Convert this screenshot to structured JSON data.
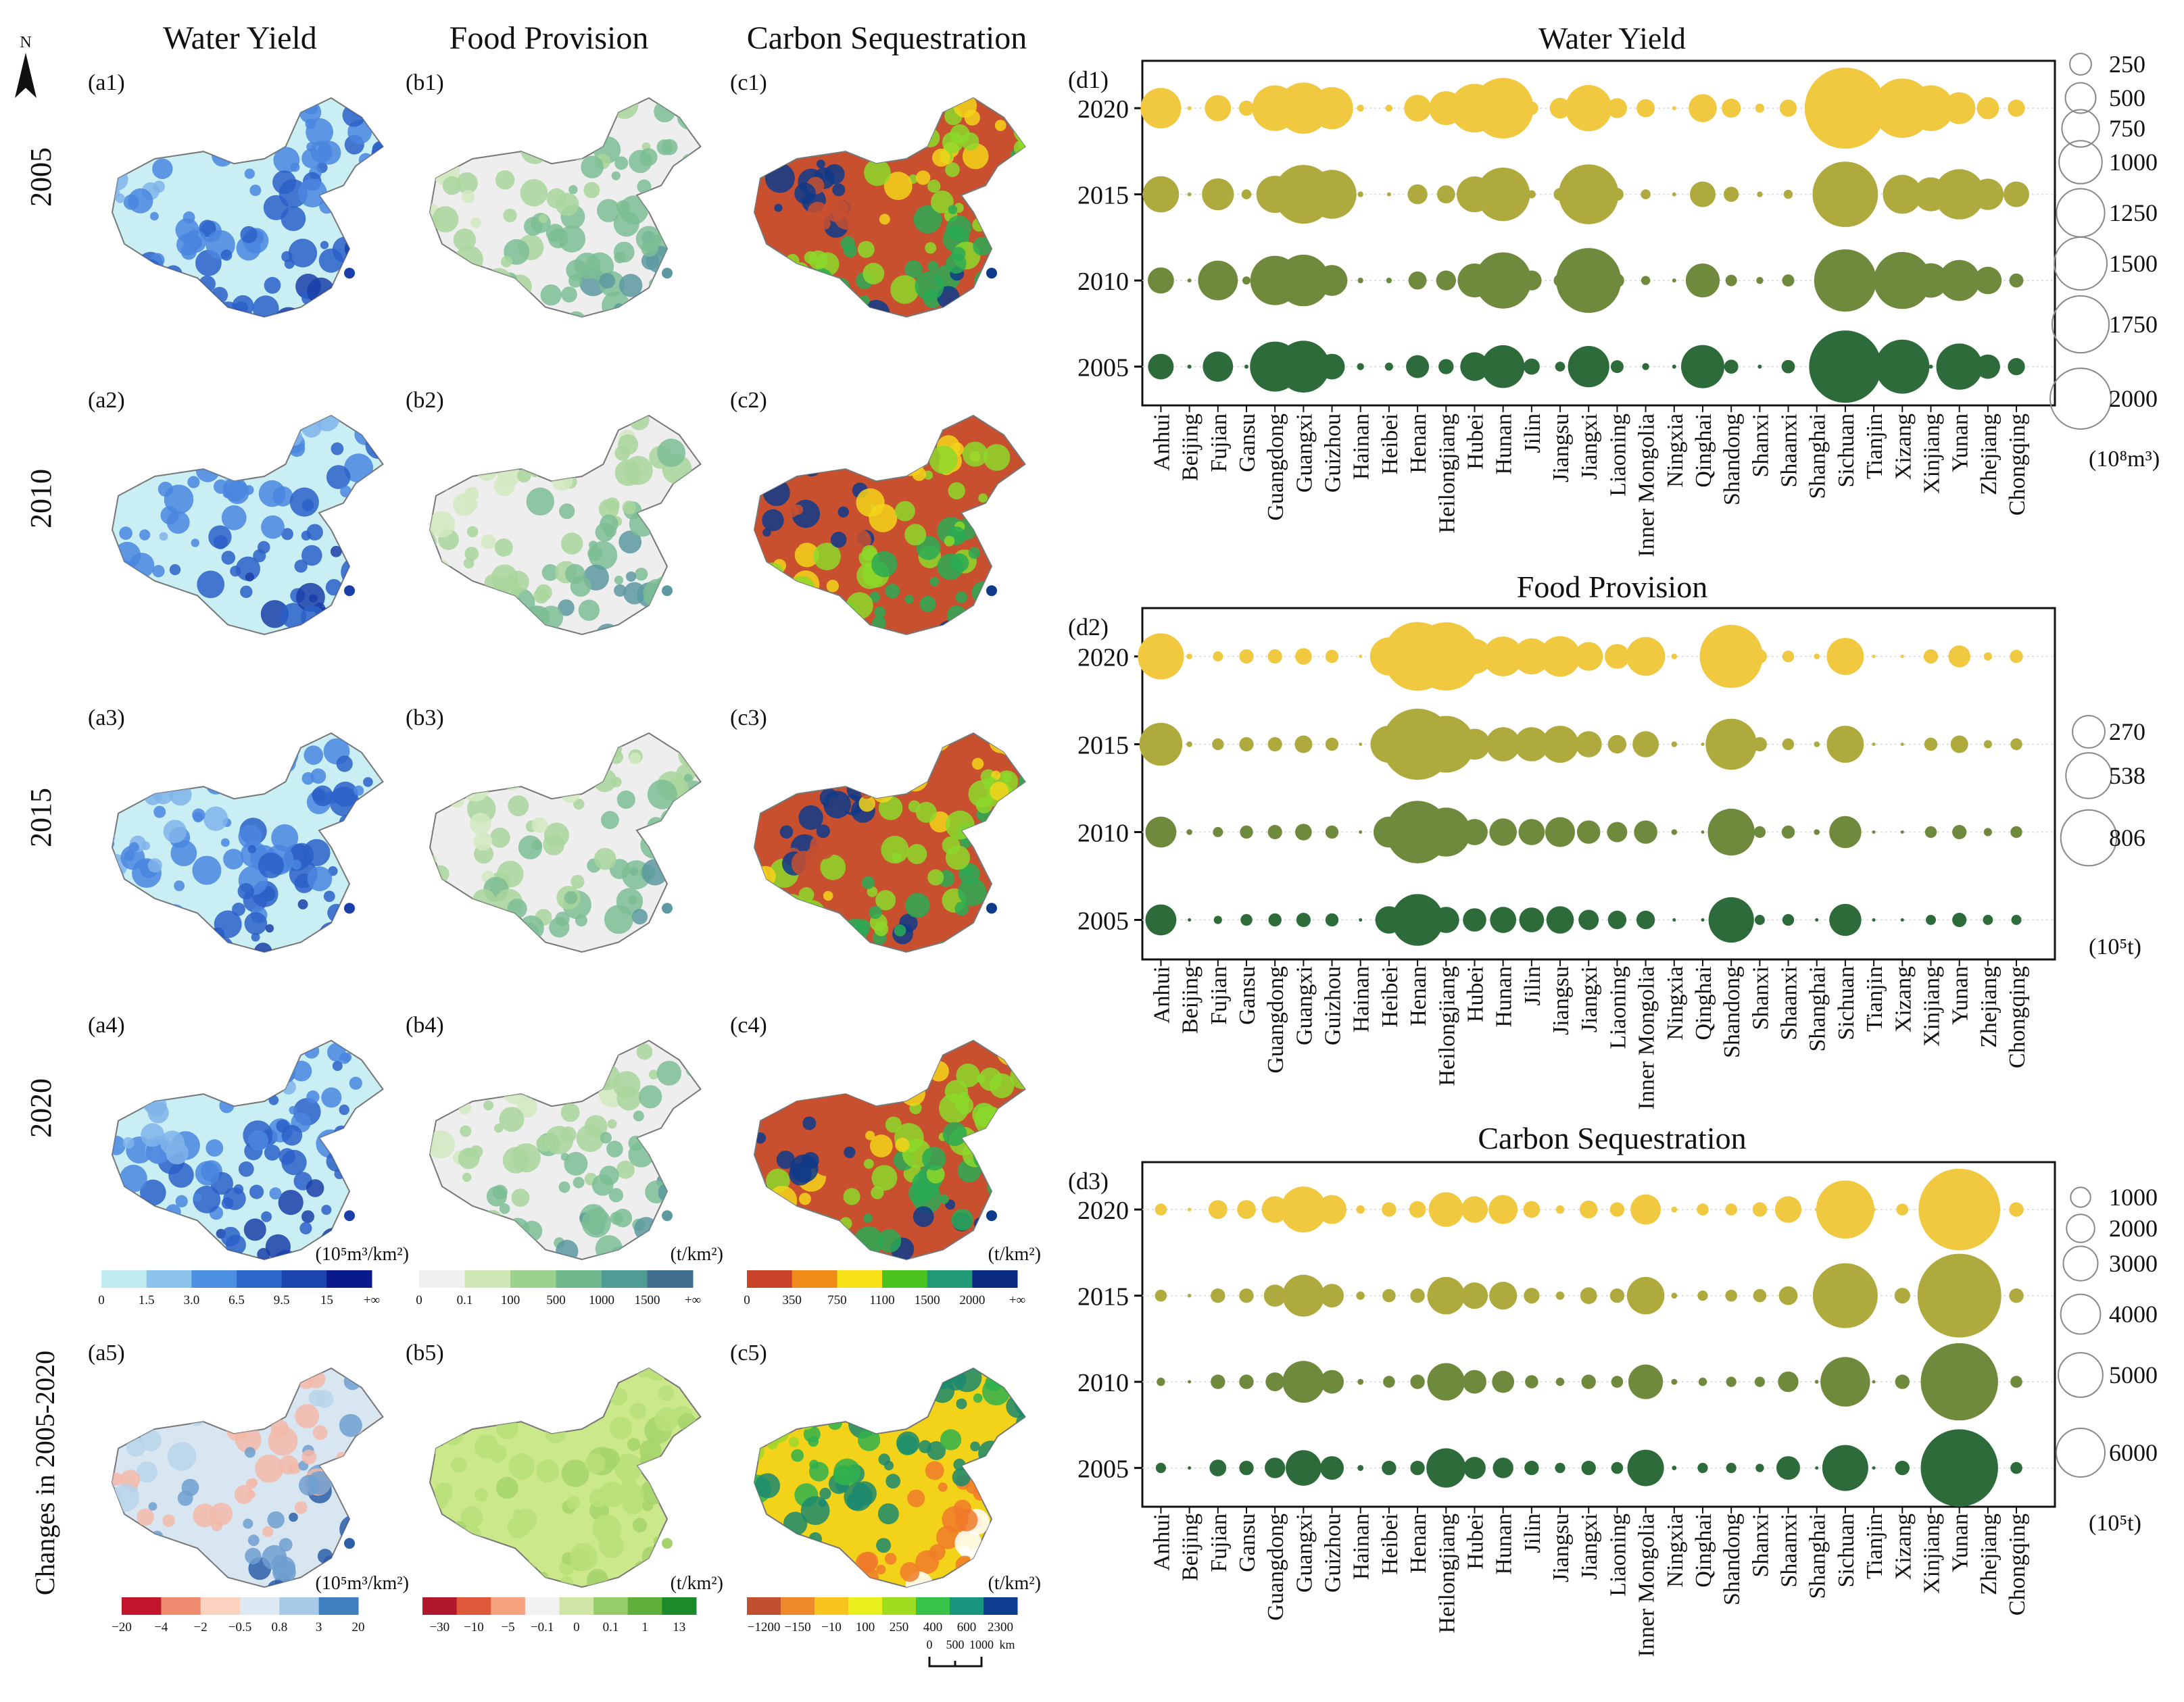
{
  "figure": {
    "col_titles": [
      "Water Yield",
      "Food Provision",
      "Carbon Sequestration"
    ],
    "row_labels": [
      "2005",
      "2010",
      "2015",
      "2020",
      "Changes in 2005-2020"
    ],
    "north_label": "N",
    "panel_labels": [
      [
        "(a1)",
        "(b1)",
        "(c1)"
      ],
      [
        "(a2)",
        "(b2)",
        "(c2)"
      ],
      [
        "(a3)",
        "(b3)",
        "(c3)"
      ],
      [
        "(a4)",
        "(b4)",
        "(c4)"
      ],
      [
        "(a5)",
        "(b5)",
        "(c5)"
      ]
    ],
    "legends": [
      {
        "unit": "(10⁵m³/km²)",
        "ticks": [
          "0",
          "1.5",
          "3.0",
          "6.5",
          "9.5",
          "15",
          "+∞"
        ],
        "colors": [
          "#bfeaf0",
          "#8cc3ec",
          "#4b8fe0",
          "#2c68c9",
          "#1c45b0",
          "#0a1a8c"
        ]
      },
      {
        "unit": "(t/km²)",
        "ticks": [
          "0",
          "0.1",
          "100",
          "500",
          "1000",
          "1500",
          "+∞"
        ],
        "colors": [
          "#f0f0f0",
          "#cfe8b5",
          "#9bd28f",
          "#6fb88e",
          "#4f9c95",
          "#3f6f8c"
        ]
      },
      {
        "unit": "(t/km²)",
        "ticks": [
          "0",
          "350",
          "750",
          "1100",
          "1500",
          "2000",
          "+∞"
        ],
        "colors": [
          "#c8432a",
          "#f08a18",
          "#f7e21a",
          "#4cc41f",
          "#1f9a75",
          "#0a2a80"
        ]
      },
      {
        "unit": "(10⁵m³/km²)",
        "ticks": [
          "−20",
          "−4",
          "−2",
          "−0.5",
          "0.8",
          "3",
          "20"
        ],
        "colors": [
          "#c0152b",
          "#ee8a6e",
          "#fbd1c0",
          "#dde9f3",
          "#a7cbe7",
          "#3f7fbf"
        ]
      },
      {
        "unit": "(t/km²)",
        "ticks": [
          "−30",
          "−10",
          "−5",
          "−0.1",
          "0",
          "0.1",
          "1",
          "13"
        ],
        "colors": [
          "#b2182b",
          "#e0583a",
          "#f7a27e",
          "#f2f2f2",
          "#cfe6a6",
          "#97cc6b",
          "#5fae3c",
          "#1a8a2a"
        ]
      },
      {
        "unit": "(t/km²)",
        "ticks": [
          "−1200",
          "−150",
          "−10",
          "100",
          "250",
          "400",
          "600",
          "2300"
        ],
        "colors": [
          "#c0502f",
          "#ee8a2a",
          "#f7c51e",
          "#eaf01e",
          "#9ddc1f",
          "#39c249",
          "#17957e",
          "#0f3d8f"
        ]
      }
    ],
    "scale_bar": {
      "ticks": [
        "0",
        "500",
        "1000"
      ],
      "unit": "km"
    }
  },
  "chart_data": [
    {
      "type": "bubble",
      "panel": "(d1)",
      "title": "Water Yield",
      "unit": "(10⁸m³)",
      "size_legend": [
        250,
        500,
        750,
        1000,
        1250,
        1500,
        1750,
        2000
      ],
      "categories": [
        "Anhui",
        "Beijing",
        "Fujian",
        "Gansu",
        "Guangdong",
        "Guangxi",
        "Guizhou",
        "Hainan",
        "Heibei",
        "Henan",
        "Heilongjiang",
        "Hubei",
        "Hunan",
        "Jilin",
        "Jiangsu",
        "Jiangxi",
        "Liaoning",
        "Inner Mongolia",
        "Ningxia",
        "Qinghai",
        "Shandong",
        "Shanxi",
        "Shaanxi",
        "Shanghai",
        "Sichuan",
        "Tianjin",
        "Xizang",
        "Xinjiang",
        "Yunan",
        "Zhejiang",
        "Chongqing"
      ],
      "series": [
        {
          "name": "2020",
          "values": [
            500,
            5,
            210,
            70,
            630,
            800,
            540,
            15,
            15,
            220,
            350,
            720,
            1120,
            55,
            130,
            650,
            120,
            100,
            5,
            240,
            110,
            25,
            90,
            5,
            2000,
            5,
            1070,
            640,
            310,
            150,
            90
          ]
        },
        {
          "name": "2015",
          "values": [
            400,
            5,
            310,
            30,
            420,
            1050,
            730,
            10,
            5,
            120,
            100,
            390,
            870,
            20,
            50,
            1090,
            50,
            30,
            5,
            200,
            70,
            10,
            25,
            5,
            1300,
            5,
            460,
            350,
            770,
            300,
            200
          ]
        },
        {
          "name": "2010",
          "values": [
            210,
            5,
            480,
            20,
            740,
            810,
            290,
            10,
            10,
            100,
            120,
            350,
            960,
            120,
            50,
            1280,
            60,
            25,
            5,
            350,
            40,
            15,
            45,
            5,
            1180,
            5,
            990,
            360,
            510,
            230,
            60
          ]
        },
        {
          "name": "2005",
          "values": [
            200,
            5,
            280,
            5,
            760,
            820,
            200,
            15,
            20,
            160,
            70,
            250,
            560,
            80,
            30,
            520,
            50,
            15,
            5,
            570,
            60,
            5,
            55,
            5,
            1590,
            5,
            890,
            5,
            650,
            180,
            90
          ]
        }
      ],
      "x_labels": [
        "Anhui",
        "Beijing",
        "Fujian",
        "Gansu",
        "Guangdong",
        "Guangxi",
        "Guizhou",
        "Hainan",
        "Heibei",
        "Henan",
        "Heilongjiang",
        "Hubei",
        "Hunan",
        "Jilin",
        "Jiangsu",
        "Jiangxi",
        "Liaoning",
        "Inner Mongolia",
        "Ningxia",
        "Qinghai",
        "Shandong",
        "Shanxi",
        "Shaanxi",
        "Shanghai",
        "Sichuan",
        "Tianjin",
        "Xizang",
        "Xinjiang",
        "Yunan",
        "Zhejiang",
        "Chongqing"
      ]
    },
    {
      "type": "bubble",
      "panel": "(d2)",
      "title": "Food Provision",
      "unit": "(10⁵t)",
      "size_legend": [
        270,
        538,
        806
      ],
      "categories": [
        "Anhui",
        "Beijing",
        "Fujian",
        "Gansu",
        "Guangdong",
        "Guangxi",
        "Guizhou",
        "Hainan",
        "Heibei",
        "Henan",
        "Heilongjiang",
        "Hubei",
        "Hunan",
        "Jilin",
        "Jiangsu",
        "Jiangxi",
        "Liaoning",
        "Inner Mongolia",
        "Ningxia",
        "Qinghai",
        "Shandong",
        "Shanxi",
        "Shaanxi",
        "Shanghai",
        "Sichuan",
        "Tianjin",
        "Xizang",
        "Xinjiang",
        "Yunan",
        "Zhejiang",
        "Chongqing"
      ],
      "series": [
        {
          "name": "2020",
          "values": [
            310,
            5,
            15,
            30,
            30,
            40,
            25,
            0,
            210,
            690,
            680,
            180,
            230,
            190,
            240,
            120,
            90,
            220,
            5,
            0,
            580,
            30,
            20,
            5,
            200,
            0,
            0,
            30,
            70,
            10,
            25
          ]
        },
        {
          "name": "2015",
          "values": [
            270,
            5,
            20,
            30,
            30,
            45,
            25,
            0,
            200,
            740,
            470,
            140,
            170,
            170,
            200,
            100,
            50,
            100,
            5,
            0,
            380,
            30,
            20,
            5,
            200,
            0,
            0,
            25,
            45,
            10,
            20
          ]
        },
        {
          "name": "2010",
          "values": [
            140,
            5,
            15,
            25,
            30,
            40,
            25,
            0,
            140,
            570,
            350,
            100,
            110,
            100,
            130,
            80,
            60,
            80,
            5,
            0,
            320,
            20,
            25,
            5,
            150,
            0,
            0,
            20,
            30,
            10,
            20
          ]
        },
        {
          "name": "2005",
          "values": [
            140,
            0,
            10,
            20,
            25,
            30,
            25,
            0,
            110,
            390,
            100,
            80,
            100,
            90,
            110,
            60,
            50,
            50,
            0,
            0,
            300,
            15,
            20,
            0,
            150,
            0,
            0,
            15,
            30,
            15,
            15
          ]
        }
      ],
      "x_labels": [
        "Anhui",
        "Beijing",
        "Fujian",
        "Gansu",
        "Guangdong",
        "Guangxi",
        "Guizhou",
        "Hainan",
        "Heibei",
        "Henan",
        "Heilongjiang",
        "Hubei",
        "Hunan",
        "Jilin",
        "Jiangsu",
        "Jiangxi",
        "Liaoning",
        "Inner Mongolia",
        "Ningxia",
        "Qinghai",
        "Shandong",
        "Shanxi",
        "Shaanxi",
        "Shanghai",
        "Sichuan",
        "Tianjin",
        "Xizang",
        "Xinjiang",
        "Yunan",
        "Zhejiang",
        "Chongqing"
      ]
    },
    {
      "type": "bubble",
      "panel": "(d3)",
      "title": "Carbon Sequestration",
      "unit": "(10⁵t)",
      "size_legend": [
        1000,
        2000,
        3000,
        4000,
        5000,
        6000
      ],
      "categories": [
        "Anhui",
        "Beijing",
        "Fujian",
        "Gansu",
        "Guangdong",
        "Guangxi",
        "Guizhou",
        "Hainan",
        "Heibei",
        "Henan",
        "Heilongjiang",
        "Hubei",
        "Hunan",
        "Jilin",
        "Jiangsu",
        "Jiangxi",
        "Liaoning",
        "Inner Mongolia",
        "Ningxia",
        "Qinghai",
        "Shandong",
        "Shanxi",
        "Shaanxi",
        "Shanghai",
        "Sichuan",
        "Tianjin",
        "Xizang",
        "Xinjiang",
        "Yunan",
        "Zhejiang",
        "Chongqing"
      ],
      "series": [
        {
          "name": "2020",
          "values": [
            200,
            20,
            500,
            500,
            1000,
            3000,
            1200,
            100,
            300,
            400,
            1700,
            1000,
            1200,
            400,
            100,
            450,
            300,
            1300,
            50,
            200,
            200,
            300,
            1000,
            20,
            4800,
            20,
            200,
            100,
            9500,
            350,
            300
          ]
        },
        {
          "name": "2015",
          "values": [
            200,
            20,
            300,
            300,
            700,
            2500,
            800,
            100,
            250,
            300,
            2000,
            1000,
            1100,
            350,
            100,
            400,
            300,
            2000,
            50,
            150,
            200,
            250,
            500,
            20,
            6000,
            20,
            350,
            150,
            10000,
            350,
            300
          ]
        },
        {
          "name": "2010",
          "values": [
            100,
            10,
            300,
            300,
            500,
            2500,
            800,
            50,
            200,
            300,
            2000,
            800,
            700,
            250,
            100,
            300,
            200,
            1700,
            50,
            100,
            150,
            150,
            600,
            20,
            3500,
            10,
            300,
            150,
            8500,
            200,
            200
          ]
        },
        {
          "name": "2005",
          "values": [
            150,
            5,
            400,
            300,
            600,
            1800,
            800,
            50,
            300,
            300,
            2200,
            700,
            600,
            300,
            150,
            300,
            200,
            1900,
            30,
            150,
            150,
            100,
            800,
            10,
            3000,
            5,
            300,
            100,
            8500,
            200,
            200
          ]
        }
      ],
      "x_labels": [
        "Anhui",
        "Beijing",
        "Fujian",
        "Gansu",
        "Guangdong",
        "Guangxi",
        "Guizhou",
        "Hainan",
        "Heibei",
        "Henan",
        "Heilongjiang",
        "Hubei",
        "Hunan",
        "Jilin",
        "Jiangsu",
        "Jiangxi",
        "Liaoning",
        "Inner Mongolia",
        "Ningxia",
        "Qinghai",
        "Shandong",
        "Shanxi",
        "Shaanxi",
        "Shanghai",
        "Sichuan",
        "Tianjin",
        "Xizang",
        "Xinjiang",
        "Yunan",
        "Zhejiang",
        "Chongqing"
      ]
    }
  ]
}
